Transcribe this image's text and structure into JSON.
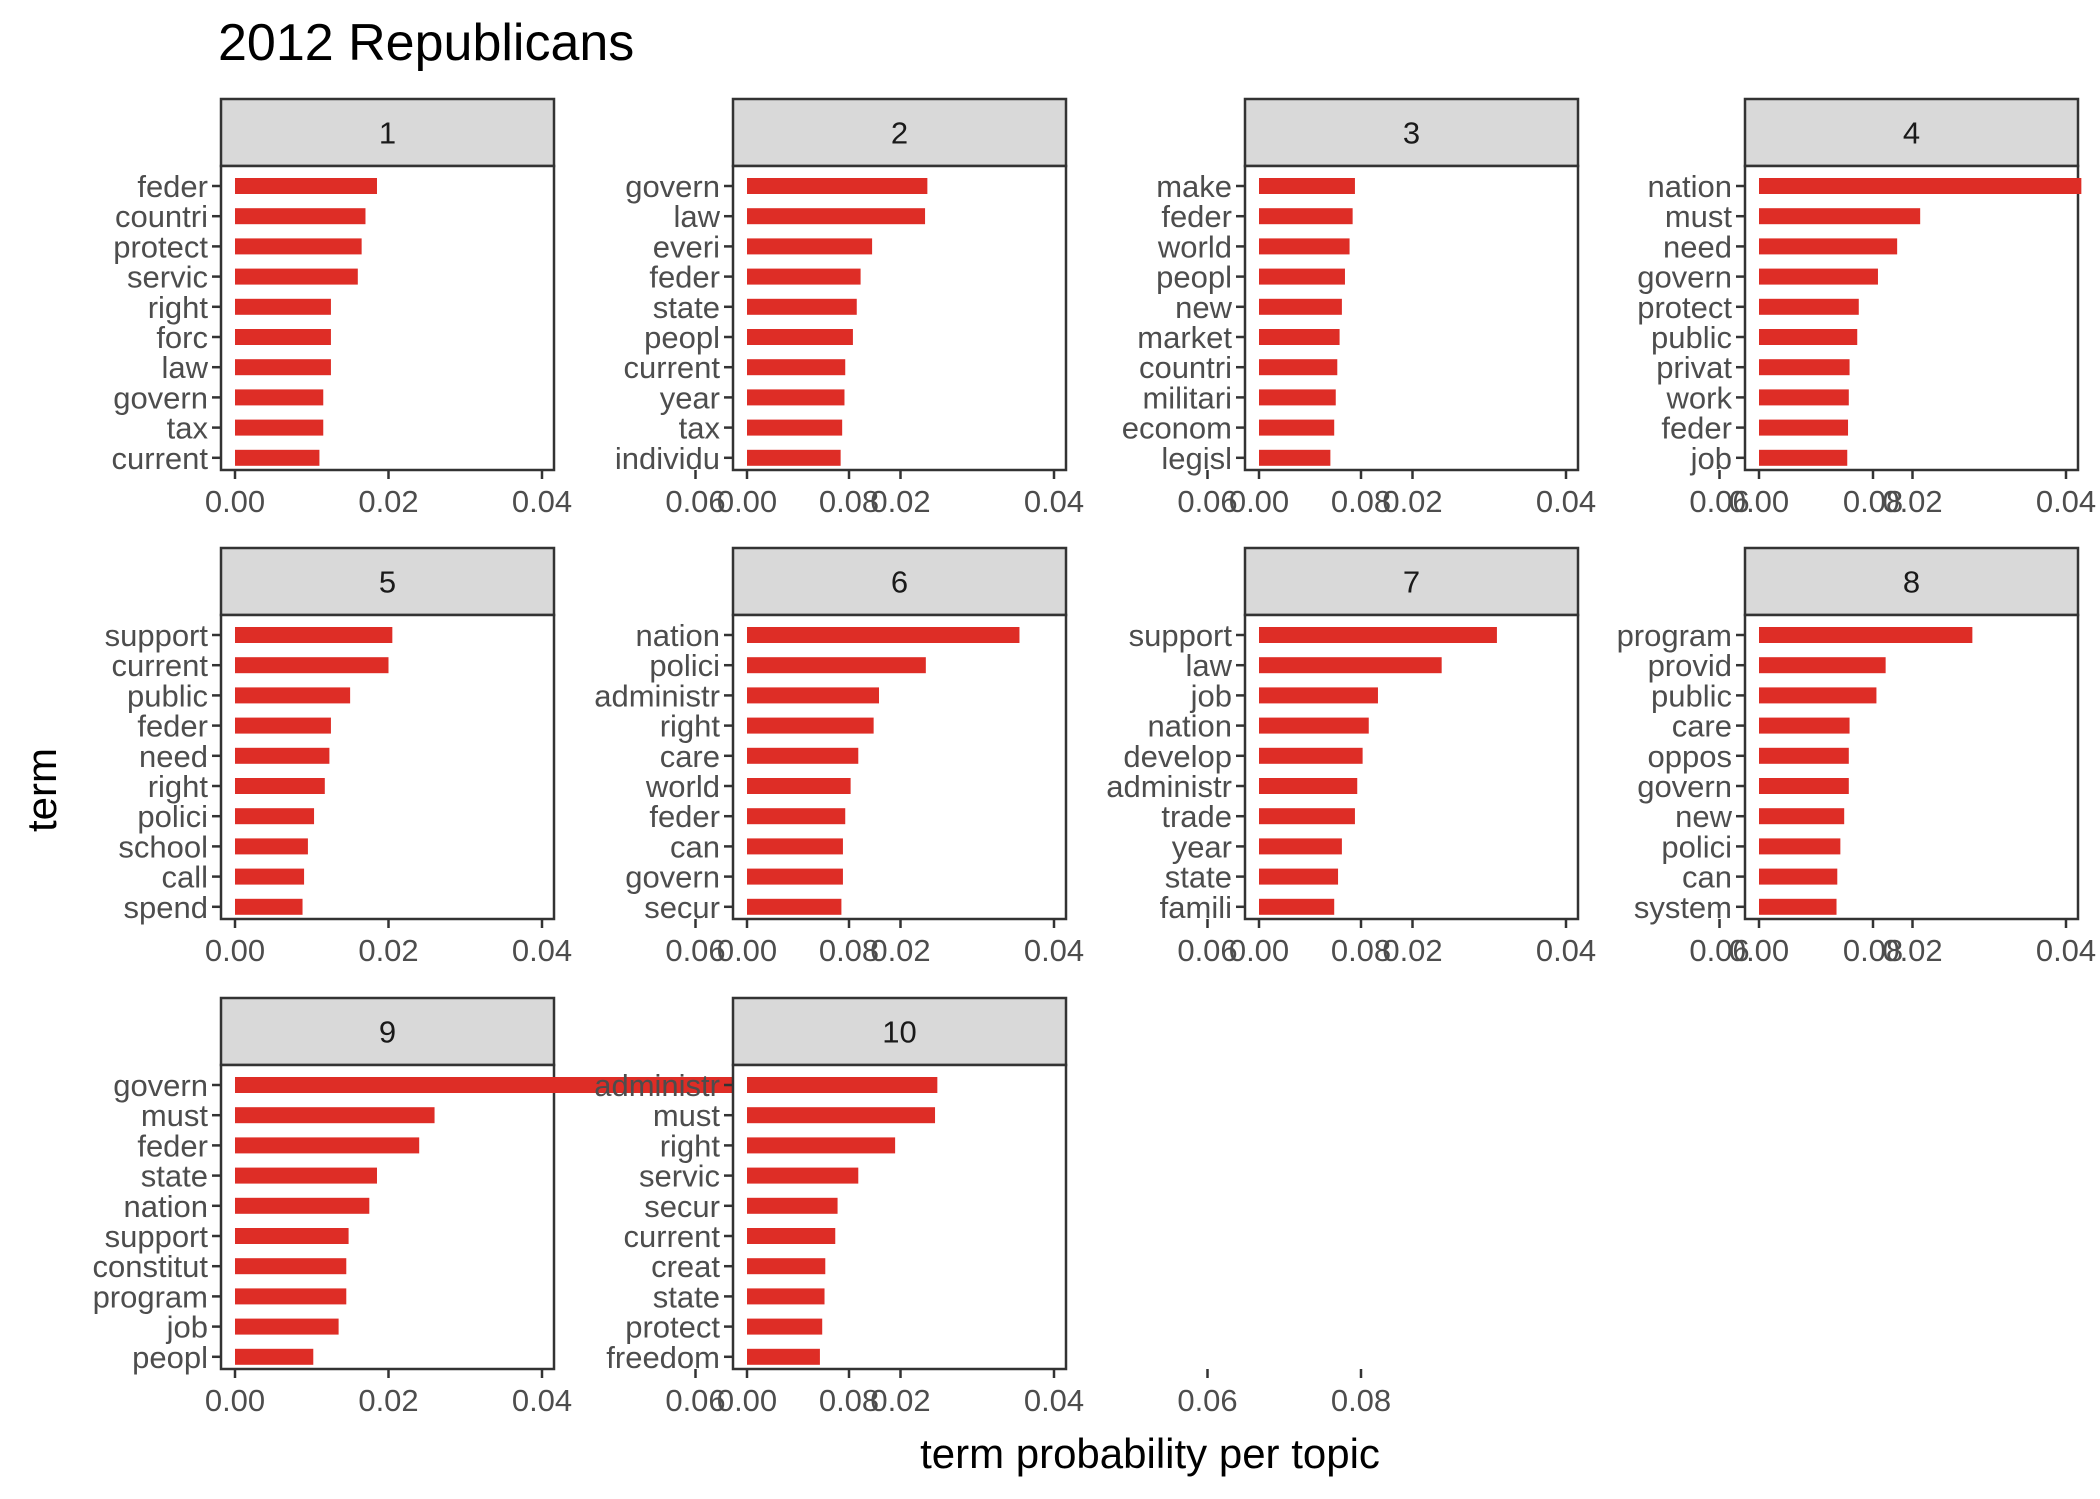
{
  "chart_data": {
    "type": "bar",
    "orientation": "horizontal",
    "title": "2012 Republicans",
    "xlabel": "term probability per topic",
    "ylabel": "term",
    "xlim": [
      0,
      0.08
    ],
    "x_ticks": [
      "0.00",
      "0.02",
      "0.04",
      "0.06",
      "0.08"
    ],
    "bar_color": "#de2d26",
    "strip_fill": "#d9d9d9",
    "grid": false,
    "facet_layout": "4 columns x 3 rows",
    "facets": [
      {
        "label": "1",
        "terms": [
          "feder",
          "countri",
          "protect",
          "servic",
          "right",
          "forc",
          "law",
          "govern",
          "tax",
          "current"
        ],
        "values": [
          0.0185,
          0.017,
          0.0165,
          0.016,
          0.0125,
          0.0125,
          0.0125,
          0.0115,
          0.0115,
          0.011
        ]
      },
      {
        "label": "2",
        "terms": [
          "govern",
          "law",
          "everi",
          "feder",
          "state",
          "peopl",
          "current",
          "year",
          "tax",
          "individu"
        ],
        "values": [
          0.0235,
          0.0232,
          0.0163,
          0.0148,
          0.0143,
          0.0138,
          0.0128,
          0.0127,
          0.0124,
          0.0122
        ]
      },
      {
        "label": "3",
        "terms": [
          "make",
          "feder",
          "world",
          "peopl",
          "new",
          "market",
          "countri",
          "militari",
          "econom",
          "legisl"
        ],
        "values": [
          0.0125,
          0.0122,
          0.0118,
          0.0112,
          0.0108,
          0.0105,
          0.0102,
          0.01,
          0.0098,
          0.0093
        ]
      },
      {
        "label": "4",
        "terms": [
          "nation",
          "must",
          "need",
          "govern",
          "protect",
          "public",
          "privat",
          "work",
          "feder",
          "job"
        ],
        "values": [
          0.042,
          0.021,
          0.018,
          0.0155,
          0.013,
          0.0128,
          0.0118,
          0.0117,
          0.0116,
          0.0115
        ]
      },
      {
        "label": "5",
        "terms": [
          "support",
          "current",
          "public",
          "feder",
          "need",
          "right",
          "polici",
          "school",
          "call",
          "spend"
        ],
        "values": [
          0.0205,
          0.02,
          0.015,
          0.0125,
          0.0123,
          0.0117,
          0.0103,
          0.0095,
          0.009,
          0.0088
        ]
      },
      {
        "label": "6",
        "terms": [
          "nation",
          "polici",
          "administr",
          "right",
          "care",
          "world",
          "feder",
          "can",
          "govern",
          "secur"
        ],
        "values": [
          0.0355,
          0.0233,
          0.0172,
          0.0165,
          0.0145,
          0.0135,
          0.0128,
          0.0125,
          0.0125,
          0.0123
        ]
      },
      {
        "label": "7",
        "terms": [
          "support",
          "law",
          "job",
          "nation",
          "develop",
          "administr",
          "trade",
          "year",
          "state",
          "famili"
        ],
        "values": [
          0.031,
          0.0238,
          0.0155,
          0.0143,
          0.0135,
          0.0128,
          0.0125,
          0.0108,
          0.0103,
          0.0098
        ]
      },
      {
        "label": "8",
        "terms": [
          "program",
          "provid",
          "public",
          "care",
          "oppos",
          "govern",
          "new",
          "polici",
          "can",
          "system"
        ],
        "values": [
          0.0278,
          0.0165,
          0.0153,
          0.0118,
          0.0117,
          0.0117,
          0.0111,
          0.0106,
          0.0102,
          0.0101
        ]
      },
      {
        "label": "9",
        "terms": [
          "govern",
          "must",
          "feder",
          "state",
          "nation",
          "support",
          "constitut",
          "program",
          "job",
          "peopl"
        ],
        "values": [
          0.068,
          0.026,
          0.024,
          0.0185,
          0.0175,
          0.0148,
          0.0145,
          0.0145,
          0.0135,
          0.0102
        ]
      },
      {
        "label": "10",
        "terms": [
          "administr",
          "must",
          "right",
          "servic",
          "secur",
          "current",
          "creat",
          "state",
          "protect",
          "freedom"
        ],
        "values": [
          0.0248,
          0.0245,
          0.0193,
          0.0145,
          0.0118,
          0.0115,
          0.0102,
          0.0101,
          0.0098,
          0.0095
        ]
      }
    ]
  }
}
